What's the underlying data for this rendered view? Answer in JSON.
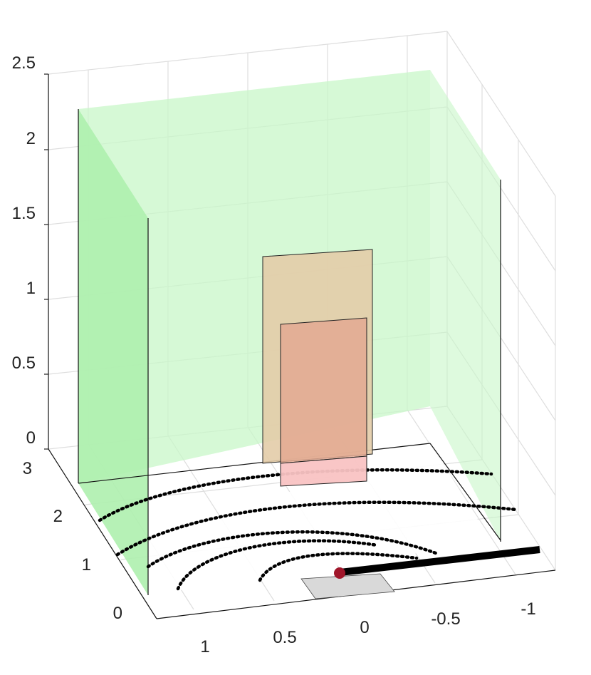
{
  "chart_data": {
    "type": "3d-surface-scene",
    "zaxis": {
      "ticks": [
        "0",
        "0.5",
        "1",
        "1.5",
        "2",
        "2.5"
      ],
      "lim": [
        0,
        2.5
      ]
    },
    "yaxis": {
      "ticks": [
        "0",
        "1",
        "2",
        "3"
      ],
      "lim": [
        0,
        3
      ]
    },
    "xaxis": {
      "ticks": [
        "1",
        "0.5",
        "0",
        "-0.5",
        "-1"
      ],
      "lim": [
        -1.25,
        1.25
      ]
    },
    "grid": true,
    "objects": [
      {
        "name": "side wall (left)",
        "color": "#b6f5b6"
      },
      {
        "name": "back wall",
        "color": "#d8fad8"
      },
      {
        "name": "right wall",
        "color": "#d8fad8"
      },
      {
        "name": "outer panel",
        "color": "#e6d4bd"
      },
      {
        "name": "inner panel",
        "color": "#e5b49c"
      },
      {
        "name": "floor patch",
        "color": "#dddddd"
      },
      {
        "name": "arm",
        "color": "#000000"
      },
      {
        "name": "end point",
        "color": "#a0162a"
      }
    ],
    "dotted_arcs": 4
  }
}
